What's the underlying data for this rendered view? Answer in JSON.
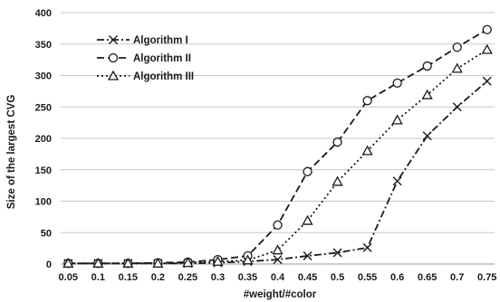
{
  "chart_data": {
    "type": "line",
    "xlabel": "#weight/#color",
    "ylabel": "Size of the largest CVG",
    "x": [
      0.05,
      0.1,
      0.15,
      0.2,
      0.25,
      0.3,
      0.35,
      0.4,
      0.45,
      0.5,
      0.55,
      0.6,
      0.65,
      0.7,
      0.75
    ],
    "x_tick_labels": [
      "0.05",
      "0.1",
      "0.15",
      "0.2",
      "0.25",
      "0.3",
      "0.35",
      "0.4",
      "0.45",
      "0.5",
      "0.55",
      "0.6",
      "0.65",
      "0.7",
      "0.75"
    ],
    "ylim": [
      0,
      400
    ],
    "y_ticks": [
      0,
      50,
      100,
      150,
      200,
      250,
      300,
      350,
      400
    ],
    "grid": "horizontal",
    "legend_position": "top-left",
    "series": [
      {
        "name": "Algorithm I",
        "marker": "x",
        "line_style": "dash-dot",
        "color": "#1a1a1a",
        "values": [
          1,
          1,
          1,
          1,
          1,
          2,
          4,
          7,
          13,
          18,
          26,
          132,
          204,
          250,
          291
        ]
      },
      {
        "name": "Algorithm II",
        "marker": "circle",
        "line_style": "dashed",
        "color": "#1a1a1a",
        "values": [
          1,
          1,
          1,
          2,
          3,
          7,
          13,
          62,
          147,
          194,
          260,
          288,
          315,
          345,
          373
        ]
      },
      {
        "name": "Algorithm III",
        "marker": "triangle",
        "line_style": "dotted",
        "color": "#1a1a1a",
        "values": [
          1,
          1,
          1,
          1,
          2,
          4,
          6,
          22,
          69,
          131,
          180,
          229,
          269,
          311,
          341
        ]
      }
    ]
  }
}
